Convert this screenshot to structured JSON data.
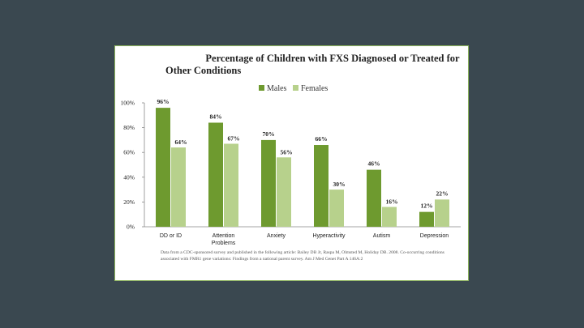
{
  "colors": {
    "background": "#3a4850",
    "males": "#6e9a2f",
    "females": "#b7d18c"
  },
  "chart_data": {
    "type": "bar",
    "title_line1": "Percentage of Children with FXS Diagnosed or Treated for",
    "title_line2": "Other Conditions",
    "legend_position": "top",
    "categories": [
      [
        "DD or ID"
      ],
      [
        "Attention",
        "Problems"
      ],
      [
        "Anxiety"
      ],
      [
        "Hyperactivity"
      ],
      [
        "Autism"
      ],
      [
        "Depression"
      ]
    ],
    "series": [
      {
        "name": "Males",
        "color": "#6e9a2f",
        "values": [
          96,
          84,
          70,
          66,
          46,
          12
        ],
        "labels": [
          "96%",
          "84%",
          "70%",
          "66%",
          "46%",
          "12%"
        ]
      },
      {
        "name": "Females",
        "color": "#b7d18c",
        "values": [
          64,
          67,
          56,
          30,
          16,
          22
        ],
        "labels": [
          "64%",
          "67%",
          "56%",
          "30%",
          "16%",
          "22%"
        ]
      }
    ],
    "ylim": [
      0,
      100
    ],
    "yticks": [
      "0%",
      "20%",
      "40%",
      "60%",
      "80%",
      "100%"
    ],
    "grid": false
  },
  "footnote": "Data from a CDC-sponsored survey and published in the following article: Bailey DB Jr, Raspa M, Olmsted M, Holiday DB. 2008. Co-occurring conditions associated with FMR1 gene variations: Findings from a national parent survey. Am J Med Genet Part A 146A:2"
}
